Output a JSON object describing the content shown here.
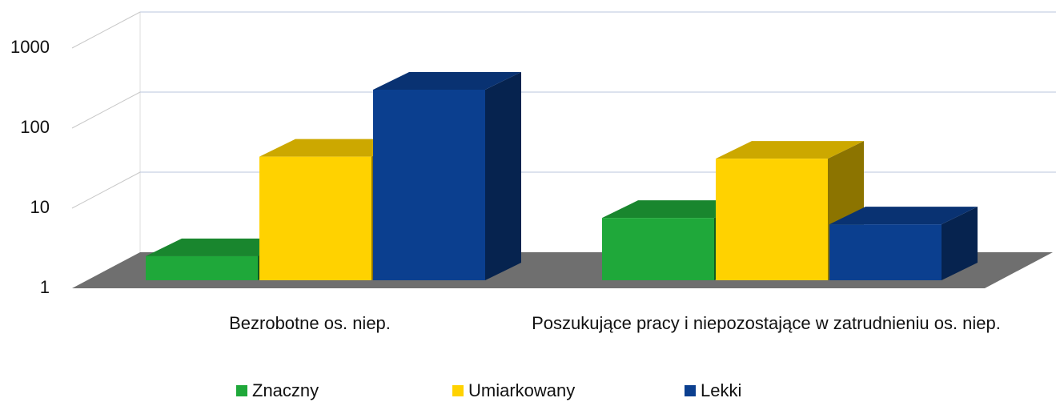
{
  "chart_data": {
    "type": "bar3d",
    "categories": [
      "Bezrobotne os. niep.",
      "Poszukujące pracy i niepozostające w zatrudnieniu os. niep."
    ],
    "series": [
      {
        "name": "Znaczny",
        "color": "#1fa83a",
        "values": [
          2,
          6
        ]
      },
      {
        "name": "Umiarkowany",
        "color": "#ffd200",
        "values": [
          35,
          33
        ]
      },
      {
        "name": "Lekki",
        "color": "#0b3f8f",
        "values": [
          240,
          5
        ]
      }
    ],
    "log_scale": true,
    "ylim": [
      1,
      1000
    ],
    "yticks": [
      1,
      10,
      100,
      1000
    ],
    "grid": true,
    "legend": "bottom"
  }
}
